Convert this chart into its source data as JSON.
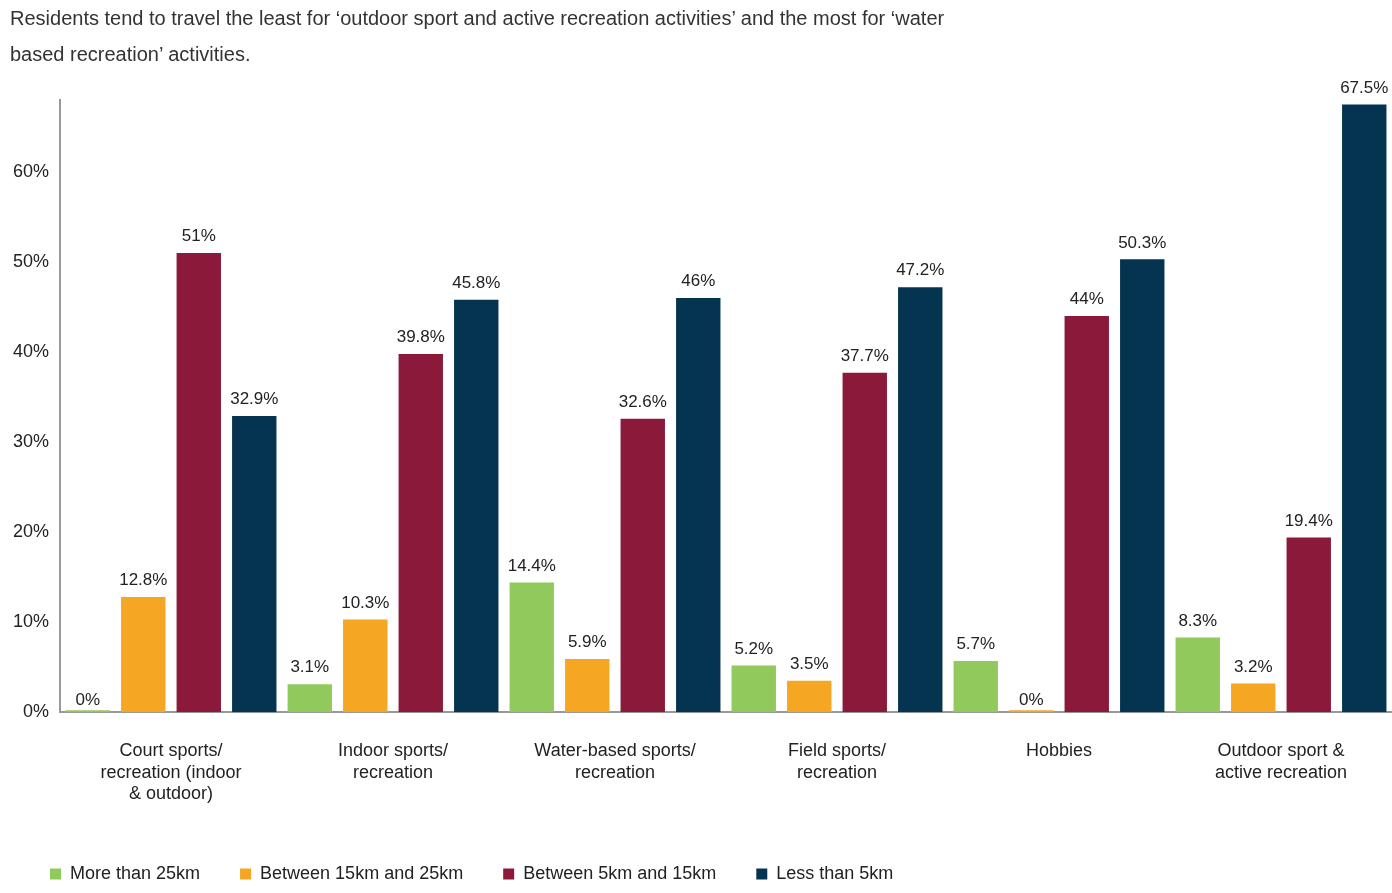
{
  "chart_data": {
    "type": "bar",
    "title": "Residents tend to travel the least for ‘outdoor sport and active recreation activities’ and the most for ‘water based recreation’ activities.",
    "categories": [
      "Court sports/ recreation (indoor & outdoor)",
      "Indoor sports/ recreation",
      "Water-based sports/ recreation",
      "Field sports/ recreation",
      "Hobbies",
      "Outdoor sport & active recreation"
    ],
    "series": [
      {
        "name": "More than 25km",
        "color": "#92c95c",
        "values": [
          0,
          3.1,
          14.4,
          5.2,
          5.7,
          8.3
        ],
        "value_labels": [
          "0%",
          "3.1%",
          "14.4%",
          "5.2%",
          "5.7%",
          "8.3%"
        ]
      },
      {
        "name": "Between 15km and 25km",
        "color": "#f5a623",
        "values": [
          12.8,
          10.3,
          5.9,
          3.5,
          0,
          3.2
        ],
        "value_labels": [
          "12.8%",
          "10.3%",
          "5.9%",
          "3.5%",
          "0%",
          "3.2%"
        ]
      },
      {
        "name": "Between 5km and 15km",
        "color": "#8b1a3a",
        "values": [
          51,
          39.8,
          32.6,
          37.7,
          44,
          19.4
        ],
        "value_labels": [
          "51%",
          "39.8%",
          "32.6%",
          "37.7%",
          "44%",
          "19.4%"
        ]
      },
      {
        "name": "Less than 5km",
        "color": "#04344f",
        "values": [
          32.9,
          45.8,
          46,
          47.2,
          50.3,
          67.5
        ],
        "value_labels": [
          "32.9%",
          "45.8%",
          "46%",
          "47.2%",
          "50.3%",
          "67.5%"
        ]
      }
    ],
    "ylim": [
      0,
      68
    ],
    "yticks": [
      {
        "value": 0,
        "label": "0%"
      },
      {
        "value": 10,
        "label": "10%"
      },
      {
        "value": 20,
        "label": "20%"
      },
      {
        "value": 30,
        "label": "30%"
      },
      {
        "value": 40,
        "label": "40%"
      },
      {
        "value": 50,
        "label": "50%"
      },
      {
        "value": 60,
        "label": "60%"
      }
    ],
    "grid": false,
    "legend": "bottom left"
  }
}
